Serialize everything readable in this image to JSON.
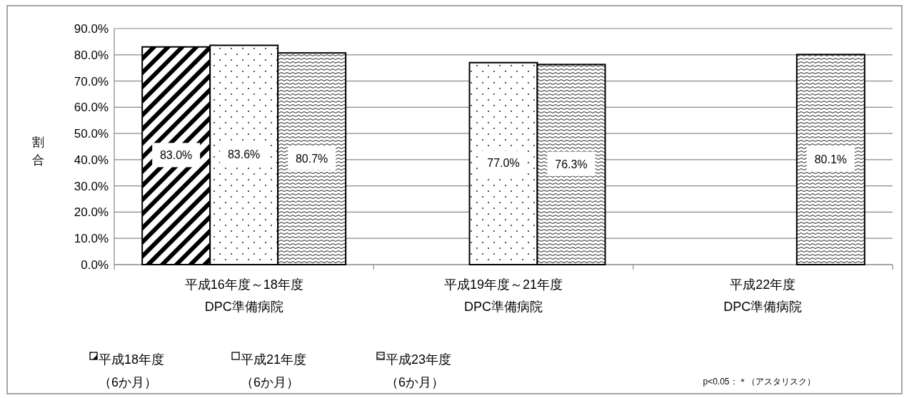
{
  "chart_data": {
    "type": "bar",
    "categories": [
      "平成16年度～18年度\nDPC準備病院",
      "平成19年度～21年度\nDPC準備病院",
      "平成22年度\nDPC準備病院"
    ],
    "series": [
      {
        "name": "平成18年度（6か月）",
        "color": "#000000",
        "values": [
          83.0,
          null,
          null
        ],
        "value_labels": [
          "83.0%",
          null,
          null
        ]
      },
      {
        "name": "平成21年度（6か月）",
        "color": "#000000",
        "values": [
          83.6,
          77.0,
          null
        ],
        "value_labels": [
          "83.6%",
          "77.0%",
          null
        ]
      },
      {
        "name": "平成23年度（6か月）",
        "color": "#000000",
        "values": [
          80.7,
          76.3,
          80.1
        ],
        "value_labels": [
          "80.7%",
          "76.3%",
          "80.1%"
        ]
      }
    ],
    "ylabel": "割合",
    "ylim": [
      0,
      90
    ],
    "yticks": [
      {
        "value": 0,
        "label": "0.0%"
      },
      {
        "value": 10,
        "label": "10.0%"
      },
      {
        "value": 20,
        "label": "20.0%"
      },
      {
        "value": 30,
        "label": "30.0%"
      },
      {
        "value": 40,
        "label": "40.0%"
      },
      {
        "value": 50,
        "label": "50.0%"
      },
      {
        "value": 60,
        "label": "60.0%"
      },
      {
        "value": 70,
        "label": "70.0%"
      },
      {
        "value": 80,
        "label": "80.0%"
      },
      {
        "value": 90,
        "label": "90.0%"
      }
    ],
    "grid": "y",
    "legend": "bottom",
    "annotations": [
      "p<0.05：＊（アスタリスク）"
    ]
  }
}
